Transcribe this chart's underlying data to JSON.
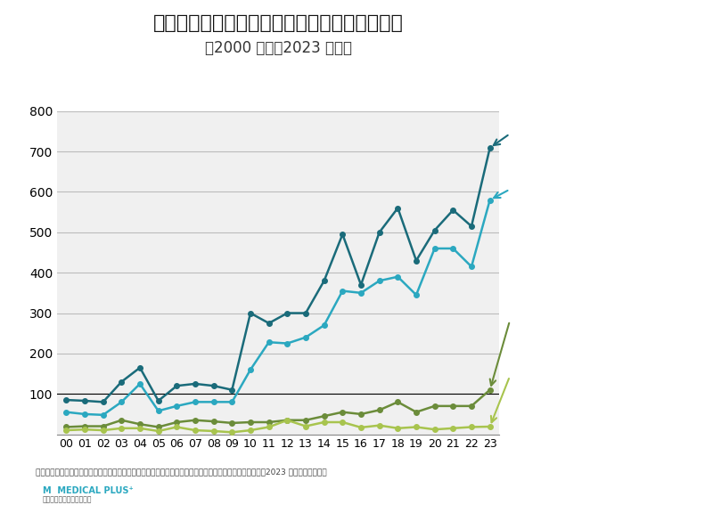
{
  "title": "医療機関経営事業者の休廃業・解散件数の推移",
  "subtitle": "（2000 年度～2023 年度）",
  "years": [
    "00",
    "01",
    "02",
    "03",
    "04",
    "05",
    "06",
    "07",
    "08",
    "09",
    "10",
    "11",
    "12",
    "13",
    "14",
    "15",
    "16",
    "17",
    "18",
    "19",
    "20",
    "21",
    "22",
    "23"
  ],
  "total": [
    85,
    83,
    80,
    130,
    165,
    83,
    120,
    125,
    120,
    110,
    300,
    275,
    300,
    300,
    380,
    495,
    370,
    500,
    560,
    430,
    505,
    555,
    515,
    709
  ],
  "clinic": [
    55,
    50,
    48,
    80,
    125,
    58,
    70,
    80,
    80,
    80,
    160,
    228,
    225,
    240,
    270,
    355,
    350,
    380,
    390,
    345,
    460,
    460,
    415,
    580
  ],
  "dental": [
    18,
    20,
    20,
    35,
    25,
    18,
    30,
    35,
    32,
    28,
    30,
    30,
    35,
    35,
    45,
    55,
    50,
    60,
    80,
    55,
    70,
    70,
    70,
    110
  ],
  "hospital": [
    10,
    12,
    10,
    15,
    15,
    8,
    18,
    10,
    8,
    5,
    10,
    18,
    35,
    20,
    30,
    30,
    17,
    22,
    15,
    18,
    12,
    15,
    18,
    19
  ],
  "color_total": "#1a6b7a",
  "color_clinic": "#2ba8c0",
  "color_dental": "#6b8c3a",
  "color_hospital": "#a8c44e",
  "box_total_color": "#1a6b7a",
  "box_clinic_color": "#2ba8c0",
  "box_dental_color": "#7a9e3a",
  "box_hospital_color": "#a8c44e",
  "ylim": [
    0,
    800
  ],
  "yticks": [
    0,
    100,
    200,
    300,
    400,
    500,
    600,
    700,
    800
  ],
  "footnote": "＊医療機関経営事業者の休廃業・解散件数の推移（出典：帝国データバンク「医療機関の『休廃業・解散』2023 年度　動向調査」",
  "title_fontsize": 16,
  "subtitle_fontsize": 12
}
